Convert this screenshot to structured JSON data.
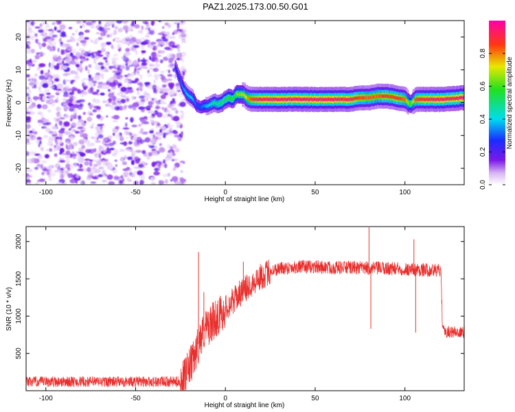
{
  "title": "PAZ1.2025.173.00.50.G01",
  "chart_data": [
    {
      "type": "heatmap",
      "xlabel": "Height of straight line (km)",
      "ylabel": "Frequency (Hz)",
      "xlim": [
        -111,
        133
      ],
      "ylim": [
        -25,
        25
      ],
      "xticks": [
        "-100",
        "-50",
        "0",
        "50",
        "100"
      ],
      "xtick_values": [
        -100,
        -50,
        0,
        50,
        100
      ],
      "yticks": [
        "20",
        "10",
        "0",
        "-10",
        "-20"
      ],
      "ytick_values": [
        20,
        10,
        0,
        -10,
        -20
      ],
      "colorbar": {
        "label": "Normalized spectral amplitude",
        "range": [
          0,
          1
        ],
        "ticks": [
          "0.0",
          "0.2",
          "0.4",
          "0.6",
          "0.8"
        ],
        "tick_values": [
          0.0,
          0.2,
          0.4,
          0.6,
          0.8
        ]
      },
      "noise_region_x": [
        -111,
        -23
      ],
      "ridge": {
        "x": [
          -28,
          -26,
          -24,
          -22,
          -20,
          -18,
          -16,
          -14,
          -12,
          -10,
          -8,
          -6,
          -4,
          -2,
          0,
          2,
          4,
          6,
          8,
          10,
          12,
          14,
          16,
          20,
          30,
          40,
          50,
          60,
          70,
          75,
          80,
          85,
          90,
          95,
          100,
          103,
          106,
          110,
          120,
          133
        ],
        "y": [
          11,
          8,
          5,
          3,
          2,
          1,
          -1,
          -1.5,
          -1,
          -1,
          -0.5,
          0,
          -0.5,
          0,
          1,
          1.5,
          1,
          2.5,
          2.5,
          2.5,
          1.5,
          1,
          1,
          1,
          1,
          1,
          1,
          1,
          1,
          1.5,
          1.5,
          2,
          2,
          1.5,
          1,
          -0.5,
          1,
          1,
          1,
          1.5
        ],
        "amp": [
          0.25,
          0.3,
          0.35,
          0.4,
          0.4,
          0.4,
          0.3,
          0.3,
          0.35,
          0.4,
          0.45,
          0.5,
          0.5,
          0.55,
          0.55,
          0.6,
          0.6,
          0.65,
          0.7,
          0.7,
          0.8,
          0.85,
          0.9,
          0.95,
          0.97,
          0.97,
          0.97,
          0.97,
          0.95,
          0.9,
          0.85,
          0.85,
          0.9,
          0.9,
          0.85,
          0.6,
          0.9,
          0.95,
          0.97,
          0.97
        ]
      }
    },
    {
      "type": "line",
      "xlabel": "Height of straight line (km)",
      "ylabel": "SNR (10 * v/v)",
      "xlim": [
        -111,
        133
      ],
      "ylim": [
        0,
        2200
      ],
      "xticks": [
        "-100",
        "-50",
        "0",
        "50",
        "100"
      ],
      "xtick_values": [
        -100,
        -50,
        0,
        50,
        100
      ],
      "yticks": [
        "2000",
        "1500",
        "1000",
        "500"
      ],
      "ytick_values": [
        2000,
        1500,
        1000,
        500
      ],
      "series": [
        {
          "color": "#e8302e",
          "trend_x": [
            -111,
            -100,
            -80,
            -60,
            -40,
            -25,
            -22,
            -20,
            -18,
            -16,
            -14,
            -12,
            -10,
            -8,
            -6,
            -4,
            -2,
            0,
            2,
            4,
            6,
            8,
            10,
            12,
            15,
            20,
            25,
            30,
            40,
            50,
            60,
            70,
            80,
            90,
            100,
            110,
            120,
            121,
            125,
            133
          ],
          "trend_y": [
            120,
            120,
            120,
            120,
            120,
            120,
            200,
            320,
            400,
            550,
            700,
            800,
            850,
            900,
            950,
            1000,
            1050,
            1100,
            1150,
            1200,
            1250,
            1300,
            1350,
            1380,
            1450,
            1530,
            1600,
            1640,
            1660,
            1660,
            1650,
            1650,
            1640,
            1640,
            1630,
            1620,
            1610,
            800,
            790,
            780
          ],
          "noise": [
            {
              "x_from": -111,
              "x_to": -25,
              "amplitude": 70
            },
            {
              "x_from": -25,
              "x_to": 0,
              "amplitude": 260
            },
            {
              "x_from": 0,
              "x_to": 25,
              "amplitude": 180
            },
            {
              "x_from": 25,
              "x_to": 121,
              "amplitude": 90
            },
            {
              "x_from": 121,
              "x_to": 133,
              "amplitude": 80
            }
          ],
          "spikes": [
            {
              "x": -15,
              "y": 1860
            },
            {
              "x": -12,
              "y": 1320
            },
            {
              "x": 10,
              "y": 1730
            },
            {
              "x": 80,
              "y": 2190
            },
            {
              "x": 81,
              "y": 830
            },
            {
              "x": 105,
              "y": 2030
            },
            {
              "x": 106,
              "y": 780
            }
          ]
        }
      ]
    }
  ]
}
